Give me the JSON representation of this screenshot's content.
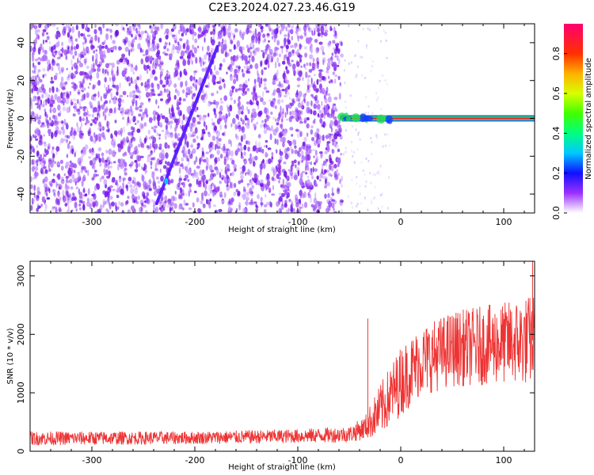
{
  "title": "C2E3.2024.027.23.46.G19",
  "colors": {
    "snr_line": "#ee3333",
    "spectrogram_scatter": "#7a1cf0",
    "tone_core": "#ff2020",
    "tone_mid": "#20e050",
    "tone_outer": "#1040ff"
  },
  "chart_data": [
    {
      "type": "heatmap",
      "name": "spectrogram",
      "xlabel": "Height of straight line (km)",
      "ylabel": "Frequency (Hz)",
      "xlim": [
        -360,
        130
      ],
      "ylim": [
        -50,
        50
      ],
      "x_ticks": [
        -300,
        -200,
        -100,
        0,
        100
      ],
      "x_tick_labels": [
        "-300",
        "-200",
        "-100",
        "0",
        "100"
      ],
      "y_ticks": [
        -40,
        -20,
        0,
        20,
        40
      ],
      "y_tick_labels": [
        "-40",
        "-20",
        "0",
        "20",
        "40"
      ],
      "noise_region_x": [
        -360,
        -57
      ],
      "tone_line": {
        "x_start": -57,
        "x_end": 130,
        "frequency": 0
      },
      "drifting_feature": {
        "x_start": -237,
        "y_start": -45,
        "x_end": -178,
        "y_end": 38
      },
      "colorbar": {
        "label": "Normalized spectral amplitude",
        "range": [
          0.0,
          0.95
        ],
        "ticks": [
          0.0,
          0.2,
          0.4,
          0.6,
          0.8
        ],
        "tick_labels": [
          "0.0",
          "0.2",
          "0.4",
          "0.6",
          "0.8"
        ],
        "stops": [
          {
            "value": 0.0,
            "color": "#ffffff"
          },
          {
            "value": 0.1,
            "color": "#9b30ff"
          },
          {
            "value": 0.2,
            "color": "#1010ff"
          },
          {
            "value": 0.3,
            "color": "#00c8ff"
          },
          {
            "value": 0.4,
            "color": "#00ff80"
          },
          {
            "value": 0.5,
            "color": "#40ff00"
          },
          {
            "value": 0.6,
            "color": "#d8ff00"
          },
          {
            "value": 0.7,
            "color": "#ffb000"
          },
          {
            "value": 0.8,
            "color": "#ff3000"
          },
          {
            "value": 0.95,
            "color": "#ff0070"
          }
        ]
      }
    },
    {
      "type": "line",
      "name": "snr",
      "xlabel": "Height of straight line (km)",
      "ylabel": "SNR (10 * v/v)",
      "xlim": [
        -360,
        130
      ],
      "ylim": [
        0,
        3250
      ],
      "x_ticks": [
        -300,
        -200,
        -100,
        0,
        100
      ],
      "x_tick_labels": [
        "-300",
        "-200",
        "-100",
        "0",
        "100"
      ],
      "y_ticks": [
        0,
        1000,
        2000,
        3000
      ],
      "y_tick_labels": [
        "0",
        "1000",
        "2000",
        "3000"
      ],
      "envelope": [
        {
          "x": -360,
          "mean": 220,
          "spread": 120
        },
        {
          "x": -200,
          "mean": 230,
          "spread": 110
        },
        {
          "x": -100,
          "mean": 260,
          "spread": 120
        },
        {
          "x": -50,
          "mean": 290,
          "spread": 140
        },
        {
          "x": -35,
          "mean": 400,
          "spread": 200
        },
        {
          "x": -20,
          "mean": 700,
          "spread": 450
        },
        {
          "x": 0,
          "mean": 1200,
          "spread": 600
        },
        {
          "x": 20,
          "mean": 1550,
          "spread": 600
        },
        {
          "x": 50,
          "mean": 1750,
          "spread": 650
        },
        {
          "x": 100,
          "mean": 1850,
          "spread": 700
        },
        {
          "x": 130,
          "mean": 1900,
          "spread": 800
        }
      ],
      "notable_peaks": [
        {
          "x": -32,
          "y": 2270
        },
        {
          "x": 128,
          "y": 3250
        }
      ]
    }
  ]
}
